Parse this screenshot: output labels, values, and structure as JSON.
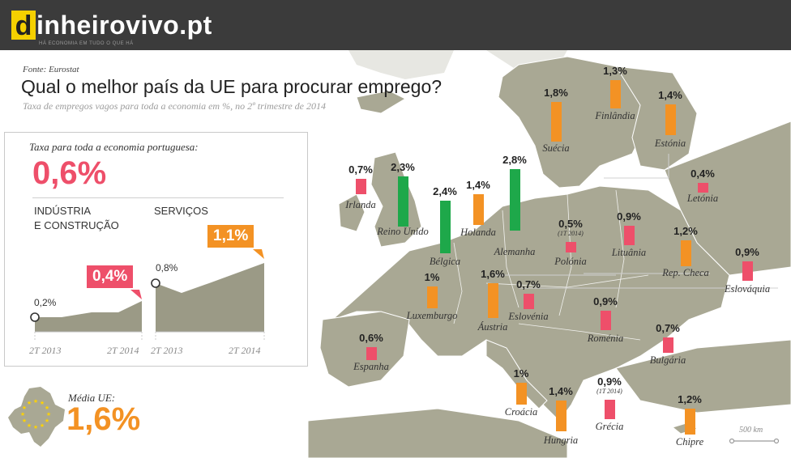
{
  "header": {
    "logo_d": "d",
    "logo_word": "inheirovivo.pt",
    "tagline": "HÁ ECONOMIA EM TUDO O QUE HÁ"
  },
  "source": "Fonte: Eurostat",
  "title": "Qual o melhor país da UE para procurar emprego?",
  "subtitle": "Taxa de empregos vagos para toda a economia em %, no 2º trimestre de 2014",
  "portugal": {
    "label": "Taxa para toda a economia portuguesa:",
    "value": "0,6%",
    "industry": {
      "title_line1": "INDÚSTRIA",
      "title_line2": "E CONSTRUÇÃO",
      "start_label": "0,2%",
      "end_label": "0,4%",
      "axis_start": "2T 2013",
      "axis_end": "2T 2014"
    },
    "services": {
      "title": "SERVIÇOS",
      "start_label": "0,8%",
      "end_label": "1,1%",
      "axis_start": "2T 2013",
      "axis_end": "2T 2014"
    }
  },
  "eu_average": {
    "label": "Média UE:",
    "value": "1,6%"
  },
  "scale_label": "500 km",
  "colors": {
    "header": "#3b3b3b",
    "logo_yellow": "#f5d000",
    "below_average": "#ee4f6a",
    "average_to_2": "#f39224",
    "above_2": "#1ea84a",
    "land": "#a9a894",
    "sea": "#ffffff"
  },
  "chart_data": [
    {
      "type": "bar",
      "title": "Qual o melhor país da UE para procurar emprego?",
      "subtitle": "Taxa de empregos vagos para toda a economia em %, no 2º trimestre de 2014",
      "countries": [
        {
          "name": "Irlanda",
          "value": 0.7,
          "label": "0,7%",
          "color": "#ee4f6a"
        },
        {
          "name": "Reino Unido",
          "value": 2.3,
          "label": "2,3%",
          "color": "#1ea84a"
        },
        {
          "name": "Bélgica",
          "value": 2.4,
          "label": "2,4%",
          "color": "#1ea84a"
        },
        {
          "name": "Holanda",
          "value": 1.4,
          "label": "1,4%",
          "color": "#f39224"
        },
        {
          "name": "Alemanha",
          "value": 2.8,
          "label": "2,8%",
          "color": "#1ea84a"
        },
        {
          "name": "Suécia",
          "value": 1.8,
          "label": "1,8%",
          "color": "#f39224"
        },
        {
          "name": "Finlândia",
          "value": 1.3,
          "label": "1,3%",
          "color": "#f39224"
        },
        {
          "name": "Estónia",
          "value": 1.4,
          "label": "1,4%",
          "color": "#f39224"
        },
        {
          "name": "Letónia",
          "value": 0.4,
          "label": "0,4%",
          "color": "#ee4f6a"
        },
        {
          "name": "Polónia",
          "value": 0.5,
          "label": "0,5%",
          "note": "(1T 2014)",
          "color": "#ee4f6a"
        },
        {
          "name": "Lituânia",
          "value": 0.9,
          "label": "0,9%",
          "color": "#ee4f6a"
        },
        {
          "name": "Rep. Checa",
          "value": 1.2,
          "label": "1,2%",
          "color": "#f39224"
        },
        {
          "name": "Eslováquia",
          "value": 0.9,
          "label": "0,9%",
          "color": "#ee4f6a"
        },
        {
          "name": "Luxemburgo",
          "value": 1.0,
          "label": "1%",
          "color": "#f39224"
        },
        {
          "name": "Áustria",
          "value": 1.6,
          "label": "1,6%",
          "color": "#f39224"
        },
        {
          "name": "Eslovénia",
          "value": 0.7,
          "label": "0,7%",
          "color": "#ee4f6a"
        },
        {
          "name": "Roménia",
          "value": 0.9,
          "label": "0,9%",
          "color": "#ee4f6a"
        },
        {
          "name": "Espanha",
          "value": 0.6,
          "label": "0,6%",
          "color": "#ee4f6a"
        },
        {
          "name": "Bulgária",
          "value": 0.7,
          "label": "0,7%",
          "color": "#ee4f6a"
        },
        {
          "name": "Croácia",
          "value": 1.0,
          "label": "1%",
          "color": "#f39224"
        },
        {
          "name": "Hungria",
          "value": 1.4,
          "label": "1,4%",
          "color": "#f39224"
        },
        {
          "name": "Grécia",
          "value": 0.9,
          "label": "0,9%",
          "note": "(1T 2014)",
          "color": "#ee4f6a"
        },
        {
          "name": "Chipre",
          "value": 1.2,
          "label": "1,2%",
          "color": "#f39224"
        }
      ]
    },
    {
      "type": "area",
      "title": "INDÚSTRIA E CONSTRUÇÃO",
      "x": [
        "2T 2013",
        "",
        "",
        "",
        "2T 2014"
      ],
      "values": [
        0.2,
        0.2,
        0.27,
        0.27,
        0.4
      ],
      "ylim": [
        0,
        1.4
      ]
    },
    {
      "type": "area",
      "title": "SERVIÇOS",
      "x": [
        "2T 2013",
        "",
        "",
        "2T 2014"
      ],
      "values": [
        0.8,
        0.67,
        0.8,
        1.1
      ],
      "ylim": [
        0,
        1.4
      ]
    }
  ]
}
